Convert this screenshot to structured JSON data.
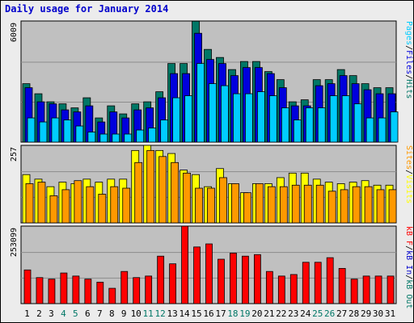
{
  "title": "Daily usage for January 2014",
  "colors": {
    "background": "#ececec",
    "plot": "#c0c0c0",
    "hits": "#007766",
    "files": "#0000dd",
    "pages": "#00ccff",
    "visits": "#ffff00",
    "sites": "#ff9900",
    "kb_in": "#0000cc",
    "kb_out": "#007766",
    "kb_f": "#ff0000",
    "weekend_label": "#007766"
  },
  "chart_data": [
    {
      "type": "bar",
      "name": "hits-files-pages",
      "ymax_label": "6009",
      "ymax": 6009,
      "legend": [
        {
          "key": "pages",
          "label": "Pages"
        },
        {
          "key": "sep1",
          "label": "/"
        },
        {
          "key": "files",
          "label": "Files"
        },
        {
          "key": "sep2",
          "label": "/"
        },
        {
          "key": "hits",
          "label": "Hits"
        }
      ],
      "series": [
        {
          "key": "hits",
          "values": [
            2900,
            2400,
            2000,
            1900,
            1700,
            2200,
            1200,
            1800,
            1400,
            1900,
            2000,
            2500,
            3900,
            3900,
            6000,
            4600,
            4200,
            3600,
            4000,
            4000,
            3500,
            3100,
            2000,
            2100,
            3100,
            3100,
            3600,
            3300,
            2900,
            2700,
            2700
          ]
        },
        {
          "key": "files",
          "values": [
            2700,
            2000,
            1900,
            1600,
            1500,
            1800,
            1000,
            1500,
            1200,
            1600,
            1700,
            2200,
            3400,
            3400,
            5400,
            4100,
            3900,
            3300,
            3700,
            3700,
            3400,
            2700,
            1800,
            1800,
            2800,
            2900,
            3300,
            2900,
            2600,
            2400,
            2400
          ]
        },
        {
          "key": "pages",
          "values": [
            1200,
            1000,
            1200,
            1100,
            800,
            500,
            400,
            400,
            400,
            600,
            700,
            1100,
            2200,
            2300,
            3900,
            2900,
            2800,
            2400,
            2400,
            2500,
            2300,
            1700,
            1100,
            1700,
            1700,
            2300,
            2300,
            1900,
            1200,
            1200,
            1500
          ]
        }
      ],
      "categories": [
        "1",
        "2",
        "3",
        "4",
        "5",
        "6",
        "7",
        "8",
        "9",
        "10",
        "11",
        "12",
        "13",
        "14",
        "15",
        "16",
        "17",
        "18",
        "19",
        "20",
        "21",
        "22",
        "23",
        "24",
        "25",
        "26",
        "27",
        "28",
        "29",
        "30",
        "31"
      ],
      "weekend_days": [
        "4",
        "5",
        "11",
        "12",
        "18",
        "19",
        "25",
        "26"
      ]
    },
    {
      "type": "bar",
      "name": "visits-sites",
      "ymax_label": "257",
      "ymax": 257,
      "legend": [
        {
          "key": "sites",
          "label": "Sites"
        },
        {
          "key": "sep3",
          "label": "/"
        },
        {
          "key": "visits",
          "label": "Visits"
        }
      ],
      "series": [
        {
          "key": "visits",
          "values": [
            160,
            145,
            120,
            135,
            130,
            145,
            135,
            145,
            145,
            240,
            265,
            240,
            230,
            175,
            160,
            120,
            180,
            130,
            100,
            130,
            130,
            150,
            165,
            165,
            145,
            135,
            130,
            135,
            140,
            125,
            125
          ]
        },
        {
          "key": "sites",
          "values": [
            130,
            135,
            90,
            110,
            140,
            120,
            95,
            120,
            115,
            200,
            240,
            220,
            200,
            165,
            115,
            115,
            150,
            130,
            100,
            130,
            120,
            120,
            125,
            125,
            125,
            105,
            110,
            120,
            120,
            110,
            110
          ]
        }
      ]
    },
    {
      "type": "bar",
      "name": "kbytes",
      "ymax_label": "253099",
      "ymax": 253099,
      "legend": [
        {
          "key": "kb_f",
          "label": "kB F"
        },
        {
          "key": "sep4",
          "label": "/"
        },
        {
          "key": "kb_in",
          "label": "kB In"
        },
        {
          "key": "sep5",
          "label": "/"
        },
        {
          "key": "kb_out",
          "label": "kB Out"
        }
      ],
      "series": [
        {
          "key": "kb_f",
          "values": [
            110000,
            85000,
            80000,
            100000,
            90000,
            80000,
            70000,
            50000,
            105000,
            85000,
            90000,
            155000,
            130000,
            253000,
            185000,
            195000,
            145000,
            165000,
            155000,
            160000,
            105000,
            90000,
            95000,
            135000,
            135000,
            150000,
            115000,
            80000,
            90000,
            90000,
            90000
          ]
        }
      ]
    }
  ]
}
